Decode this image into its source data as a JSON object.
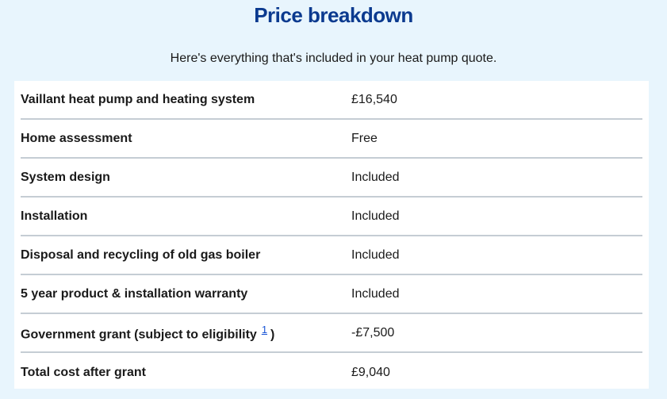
{
  "title": "Price breakdown",
  "subtitle": "Here's everything that's included in your heat pump quote.",
  "rows": [
    {
      "label": "Vaillant heat pump and heating system",
      "value": "£16,540"
    },
    {
      "label": "Home assessment",
      "value": "Free"
    },
    {
      "label": "System design",
      "value": "Included"
    },
    {
      "label": "Installation",
      "value": "Included"
    },
    {
      "label": "Disposal and recycling of old gas boiler",
      "value": "Included"
    },
    {
      "label": "5 year product & installation warranty",
      "value": "Included"
    },
    {
      "label": "Government grant (subject to eligibility",
      "footnote": "1",
      "label_close": ")",
      "value": "-£7,500"
    },
    {
      "label": "Total cost after grant",
      "value": "£9,040"
    }
  ],
  "colors": {
    "background": "#e8f5fd",
    "title": "#0b3a8f",
    "link": "#1a56d6"
  }
}
